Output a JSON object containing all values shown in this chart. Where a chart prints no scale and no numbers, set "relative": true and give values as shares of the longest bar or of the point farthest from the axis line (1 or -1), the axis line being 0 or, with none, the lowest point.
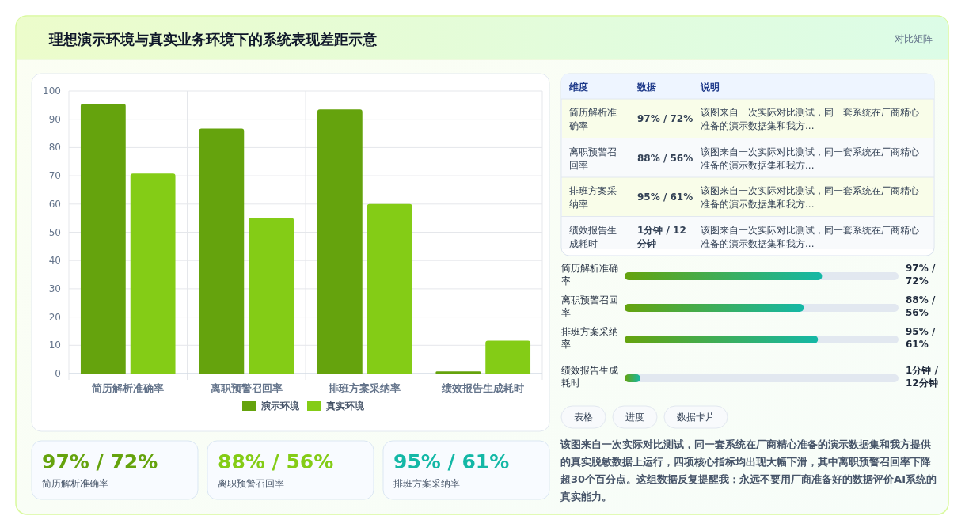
{
  "chart_data": [
    {
      "type": "bar",
      "title": "理想演示环境与真实业务环境下的系统表现差距示意",
      "annotations": [
        "对比矩阵"
      ],
      "categories": [
        "简历解析准确率",
        "离职预警召回率",
        "排班方案采纳率",
        "绩效报告生成耗时"
      ],
      "series": [
        {
          "name": "演示环境",
          "color": "#65a30d",
          "values": [
            95.5,
            86.7,
            93.5,
            0.8
          ]
        },
        {
          "name": "真实环境",
          "color": "#84cc16",
          "values": [
            70.8,
            55.1,
            60.0,
            11.6
          ]
        }
      ],
      "ylim": [
        0,
        100
      ],
      "yticks": [
        0,
        10,
        20,
        30,
        40,
        50,
        60,
        70,
        80,
        90,
        100
      ],
      "grid": true,
      "legend": "bottom"
    },
    {
      "type": "other",
      "annotations": [
        "维度",
        "数据",
        "说明",
        "简历解析准确率",
        "97% / 72%",
        "该图来自一次实际对比测试，同一套系统在厂商精心准备的演示数据集和我方...",
        "离职预警召回率",
        "88% / 56%",
        "该图来自一次实际对比测试，同一套系统在厂商精心准备的演示数据集和我方...",
        "排班方案采纳率",
        "95% / 61%",
        "该图来自一次实际对比测试，同一套系统在厂商精心准备的演示数据集和我方...",
        "绩效报告生成耗时",
        "1分钟 / 12分钟",
        "该图来自一次实际对比测试，同一套系统在厂商精心准备的演示数据集和我方..."
      ]
    },
    {
      "type": "bar",
      "orientation": "horizontal",
      "relative": true,
      "categories": [
        "简历解析准确率",
        "离职预警召回率",
        "排班方案采纳率",
        "绩效报告生成耗时"
      ],
      "values": [
        1,
        0.907,
        0.979,
        0.08
      ],
      "color": "#65a30d",
      "annotations": [
        "97% / 72%",
        "88% / 56%",
        "95% / 61%",
        "1分钟 / 12分钟",
        "表格",
        "进度",
        "数据卡片"
      ]
    },
    {
      "type": "other",
      "colors": [
        "#65a30d",
        "#84cc16",
        "#14b8a6"
      ],
      "annotations": [
        "97% / 72%",
        "简历解析准确率",
        "88% / 56%",
        "离职预警召回率",
        "95% / 61%",
        "排班方案采纳率"
      ]
    },
    {
      "type": "other",
      "annotations": [
        "该图来自一次实际对比测试，同一套系统在厂商精心准备的演示数据集和我方提供的真实脱敏数据上运行，四项核心指标均出现大幅下滑，其中离职预警召回率下降超30个百分点。这组数据反复提醒我：永远不要用厂商准备好的数据评价AI系统的真实能力。"
      ]
    }
  ]
}
